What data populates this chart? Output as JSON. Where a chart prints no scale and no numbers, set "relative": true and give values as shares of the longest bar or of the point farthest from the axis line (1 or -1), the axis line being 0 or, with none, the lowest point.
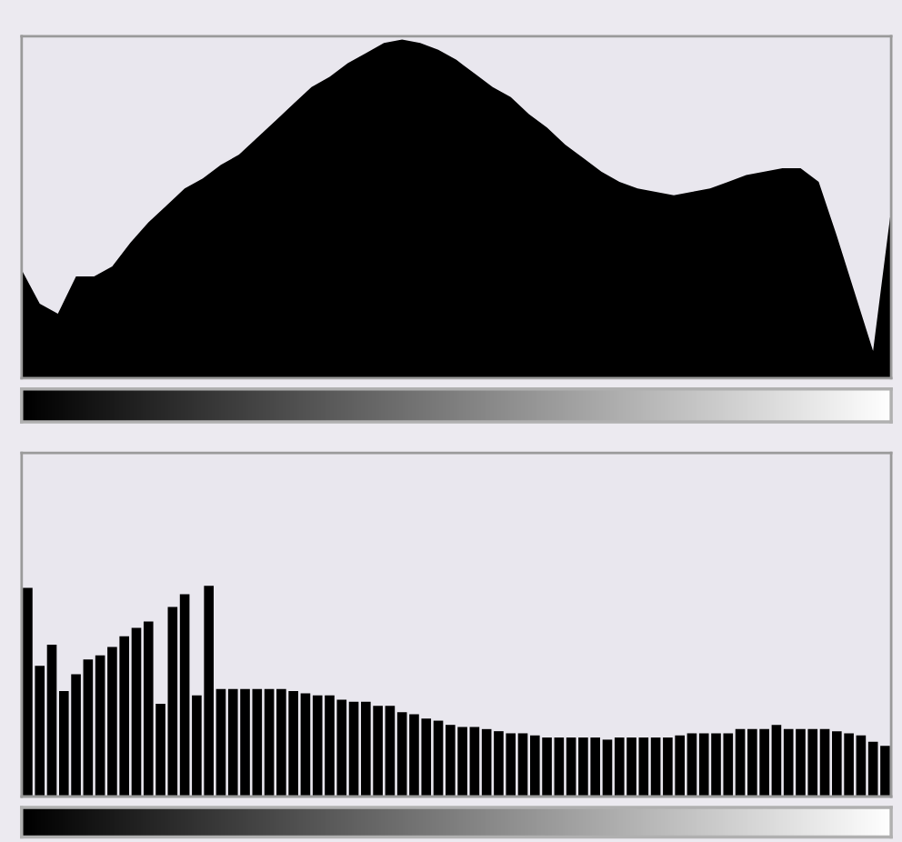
{
  "chart_data": [
    {
      "type": "area",
      "relative": true,
      "color": "#000000",
      "categories": [
        null,
        null,
        null,
        null,
        null,
        null,
        null,
        null,
        null,
        null,
        null,
        null,
        null,
        null,
        null,
        null,
        null,
        null,
        null,
        null,
        null,
        null,
        null,
        null,
        null,
        null,
        null,
        null,
        null,
        null,
        null,
        null,
        null,
        null,
        null,
        null,
        null,
        null,
        null,
        null,
        null,
        null,
        null,
        null,
        null,
        null,
        null,
        null,
        null
      ],
      "values": [
        0.32,
        0.22,
        0.19,
        0.3,
        0.3,
        0.33,
        0.4,
        0.46,
        0.51,
        0.56,
        0.59,
        0.63,
        0.66,
        0.71,
        0.76,
        0.81,
        0.86,
        0.89,
        0.93,
        0.96,
        0.99,
        1.0,
        0.99,
        0.97,
        0.94,
        0.9,
        0.86,
        0.83,
        0.78,
        0.74,
        0.69,
        0.65,
        0.61,
        0.58,
        0.56,
        0.55,
        0.54,
        0.55,
        0.56,
        0.58,
        0.6,
        0.61,
        0.62,
        0.62,
        0.58,
        0.42,
        0.25,
        0.08,
        0.5
      ]
    },
    {
      "type": "bar",
      "relative": true,
      "color": "#000000",
      "categories": [
        null,
        null,
        null,
        null,
        null,
        null,
        null,
        null,
        null,
        null,
        null,
        null,
        null,
        null,
        null,
        null,
        null,
        null,
        null,
        null,
        null,
        null,
        null,
        null,
        null,
        null,
        null,
        null,
        null,
        null,
        null,
        null,
        null,
        null,
        null,
        null,
        null,
        null,
        null,
        null,
        null,
        null,
        null,
        null,
        null,
        null,
        null,
        null,
        null,
        null,
        null,
        null,
        null,
        null,
        null,
        null,
        null,
        null,
        null,
        null,
        null,
        null,
        null,
        null,
        null,
        null,
        null,
        null,
        null,
        null,
        null,
        null
      ],
      "values": [
        0.99,
        0.62,
        0.72,
        0.5,
        0.58,
        0.65,
        0.67,
        0.71,
        0.76,
        0.8,
        0.83,
        0.44,
        0.9,
        0.96,
        0.48,
        1.0,
        0.51,
        0.51,
        0.51,
        0.51,
        0.51,
        0.51,
        0.5,
        0.49,
        0.48,
        0.48,
        0.46,
        0.45,
        0.45,
        0.43,
        0.43,
        0.4,
        0.39,
        0.37,
        0.36,
        0.34,
        0.33,
        0.33,
        0.32,
        0.31,
        0.3,
        0.3,
        0.29,
        0.28,
        0.28,
        0.28,
        0.28,
        0.28,
        0.27,
        0.28,
        0.28,
        0.28,
        0.28,
        0.28,
        0.29,
        0.3,
        0.3,
        0.3,
        0.3,
        0.32,
        0.32,
        0.32,
        0.34,
        0.32,
        0.32,
        0.32,
        0.32,
        0.31,
        0.3,
        0.29,
        0.26,
        0.24
      ]
    }
  ]
}
